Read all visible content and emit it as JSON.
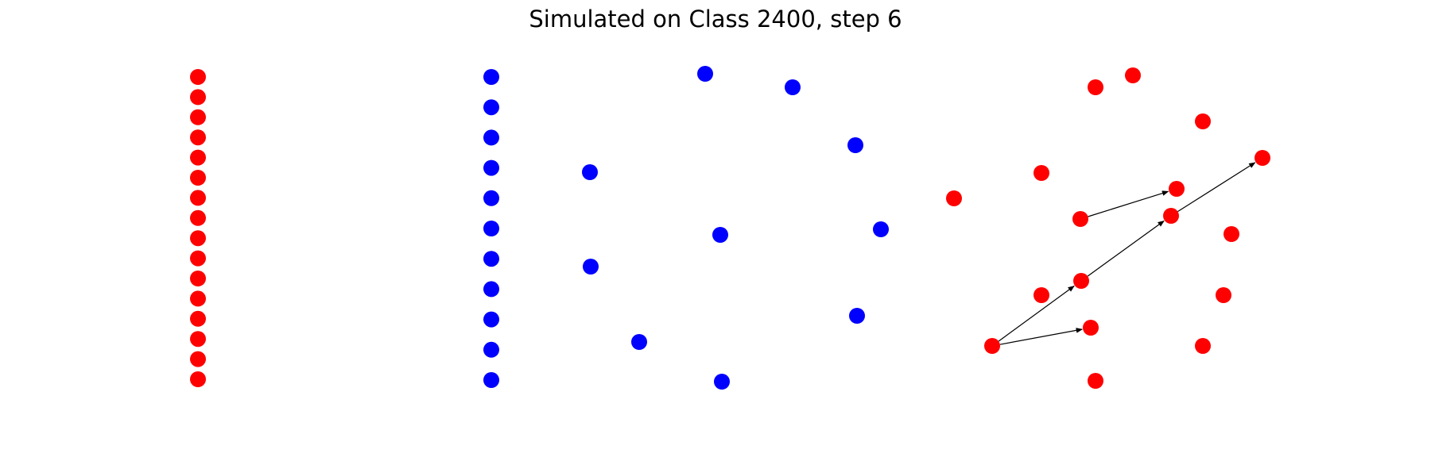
{
  "title": "Simulated on Class 2400, step 6",
  "colors": {
    "red": "#ff0000",
    "blue": "#0000ff",
    "edge": "#000000",
    "background": "#ffffff"
  },
  "panels": [
    {
      "id": "left-column",
      "color": "red",
      "node_count": 16
    },
    {
      "id": "middle-column",
      "color": "blue",
      "node_count": 11
    },
    {
      "id": "middle-ring",
      "color": "blue",
      "node_count": 10
    },
    {
      "id": "right-graph",
      "color": "red",
      "node_count": 17,
      "edge_count": 5
    }
  ]
}
